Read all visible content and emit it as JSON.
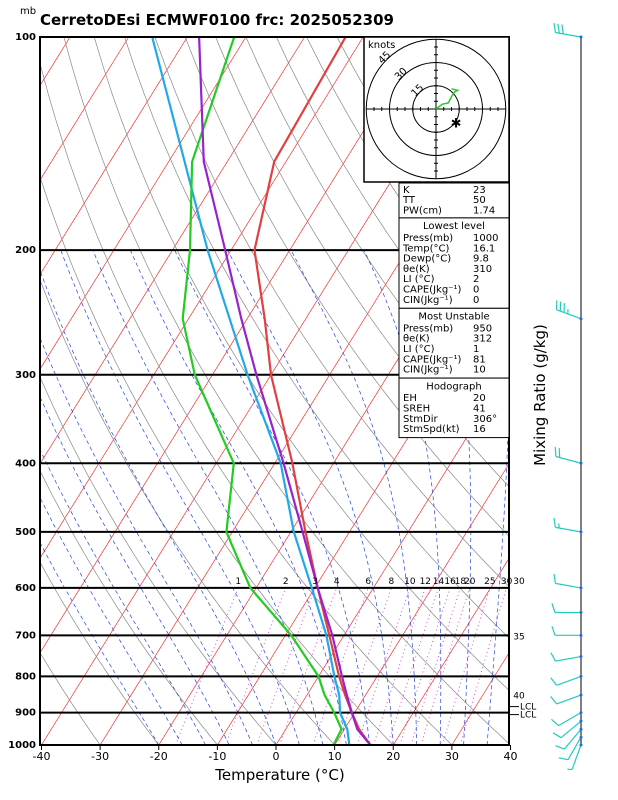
{
  "title": "CerretoDEsi ECMWF0100  frc: 2025052309",
  "pressure_unit": "mb",
  "x_axis_label": "Temperature (°C)",
  "right_axis_label": "Mixing Ratio (g/kg)",
  "hodograph_unit": "knots",
  "hodograph_ring_labels": [
    "15",
    "30",
    "45"
  ],
  "lcl_label": "LCL",
  "mixing_ratio_labels": [
    "1",
    "2",
    "3",
    "4",
    "6",
    "8",
    "10",
    "12",
    "14",
    "16",
    "18",
    "20",
    "25",
    "30"
  ],
  "wetadiabat_labels": [
    "30",
    "35",
    "40"
  ],
  "indices": {
    "top": [
      {
        "label": "K",
        "value": "23"
      },
      {
        "label": "TT",
        "value": "50"
      },
      {
        "label": "PW(cm)",
        "value": "1.74"
      }
    ],
    "lowest_level": {
      "header": "Lowest level",
      "rows": [
        {
          "label": "Press(mb)",
          "value": "1000"
        },
        {
          "label": "Temp(°C)",
          "value": "16.1"
        },
        {
          "label": "Dewp(°C)",
          "value": "9.8"
        },
        {
          "label": "θe(K)",
          "value": "310"
        },
        {
          "label": "LI (°C)",
          "value": "2"
        },
        {
          "label": "CAPE(Jkg⁻¹)",
          "value": "0"
        },
        {
          "label": "CIN(Jkg⁻¹)",
          "value": "0"
        }
      ]
    },
    "most_unstable": {
      "header": "Most Unstable",
      "rows": [
        {
          "label": "Press(mb)",
          "value": "950"
        },
        {
          "label": "θe(K)",
          "value": "312"
        },
        {
          "label": "LI (°C)",
          "value": "1"
        },
        {
          "label": "CAPE(Jkg⁻¹)",
          "value": "81"
        },
        {
          "label": "CIN(Jkg⁻¹)",
          "value": "10"
        }
      ]
    },
    "hodograph": {
      "header": "Hodograph",
      "rows": [
        {
          "label": "EH",
          "value": "20"
        },
        {
          "label": "SREH",
          "value": "41"
        },
        {
          "label": "StmDir",
          "value": "306°"
        },
        {
          "label": "StmSpd(kt)",
          "value": "16"
        }
      ]
    }
  },
  "colors": {
    "temperature": "#e04040",
    "dewpoint": "#22cc22",
    "parcel": "#9922cc",
    "wetbulb": "#22a8e8",
    "isotherm": "#ee3333",
    "dry_adiabat": "#888888",
    "moist_adiabat": "#2244dd",
    "mixing_ratio": "#cc44cc",
    "wind": "#22ccbb"
  },
  "chart_data": {
    "type": "skew-t",
    "xlabel": "Temperature (°C)",
    "ylabel": "",
    "xlim": [
      -40,
      40
    ],
    "ylim": [
      1000,
      100
    ],
    "x_ticks": [
      -40,
      -30,
      -20,
      -10,
      0,
      10,
      20,
      30,
      40
    ],
    "pressure_ticks": [
      1000,
      900,
      800,
      700,
      600,
      500,
      400,
      300,
      200,
      100
    ],
    "series": [
      {
        "name": "temperature",
        "points": [
          [
            1000,
            16.1
          ],
          [
            950,
            12.5
          ],
          [
            900,
            9.5
          ],
          [
            850,
            6.5
          ],
          [
            800,
            3.5
          ],
          [
            700,
            -2.5
          ],
          [
            600,
            -9.5
          ],
          [
            500,
            -17.5
          ],
          [
            400,
            -27
          ],
          [
            300,
            -40
          ],
          [
            250,
            -47
          ],
          [
            200,
            -56
          ],
          [
            150,
            -62
          ],
          [
            100,
            -63
          ]
        ]
      },
      {
        "name": "dewpoint",
        "points": [
          [
            1000,
            9.8
          ],
          [
            950,
            9.5
          ],
          [
            900,
            6.5
          ],
          [
            850,
            3
          ],
          [
            800,
            0
          ],
          [
            700,
            -9
          ],
          [
            600,
            -21
          ],
          [
            500,
            -31
          ],
          [
            400,
            -37
          ],
          [
            300,
            -53
          ],
          [
            250,
            -61
          ],
          [
            200,
            -67
          ],
          [
            150,
            -76
          ],
          [
            100,
            -82
          ]
        ]
      },
      {
        "name": "parcel",
        "points": [
          [
            1000,
            16.1
          ],
          [
            950,
            12.2
          ],
          [
            900,
            9.5
          ],
          [
            850,
            6.8
          ],
          [
            800,
            4
          ],
          [
            700,
            -2
          ],
          [
            600,
            -9.5
          ],
          [
            500,
            -18
          ],
          [
            400,
            -28.5
          ],
          [
            300,
            -42.5
          ],
          [
            250,
            -51
          ],
          [
            200,
            -61
          ],
          [
            150,
            -74
          ],
          [
            100,
            -88
          ]
        ]
      },
      {
        "name": "wetbulb",
        "points": [
          [
            1000,
            12.5
          ],
          [
            950,
            10.5
          ],
          [
            900,
            7.5
          ],
          [
            850,
            5.5
          ],
          [
            800,
            2.7
          ],
          [
            700,
            -3
          ],
          [
            600,
            -10.5
          ],
          [
            500,
            -19.5
          ],
          [
            400,
            -29
          ],
          [
            300,
            -44
          ],
          [
            200,
            -64
          ],
          [
            100,
            -96
          ]
        ]
      }
    ],
    "winds": [
      {
        "p": 1000,
        "dir": 200,
        "kt": 8
      },
      {
        "p": 975,
        "dir": 210,
        "kt": 10
      },
      {
        "p": 950,
        "dir": 220,
        "kt": 10
      },
      {
        "p": 925,
        "dir": 230,
        "kt": 10
      },
      {
        "p": 900,
        "dir": 240,
        "kt": 12
      },
      {
        "p": 850,
        "dir": 250,
        "kt": 10
      },
      {
        "p": 800,
        "dir": 250,
        "kt": 10
      },
      {
        "p": 750,
        "dir": 260,
        "kt": 10
      },
      {
        "p": 700,
        "dir": 270,
        "kt": 10
      },
      {
        "p": 650,
        "dir": 270,
        "kt": 10
      },
      {
        "p": 600,
        "dir": 280,
        "kt": 10
      },
      {
        "p": 500,
        "dir": 280,
        "kt": 15
      },
      {
        "p": 400,
        "dir": 285,
        "kt": 20
      },
      {
        "p": 250,
        "dir": 290,
        "kt": 35
      },
      {
        "p": 100,
        "dir": 280,
        "kt": 30
      }
    ],
    "hodograph_points": [
      [
        0,
        0
      ],
      [
        4,
        3
      ],
      [
        8,
        4
      ],
      [
        10,
        8
      ],
      [
        12,
        11
      ],
      [
        14,
        12
      ],
      [
        10,
        13
      ]
    ],
    "storm_motion": {
      "dir": 306,
      "kt": 16
    },
    "lcl_pressure": 900
  }
}
